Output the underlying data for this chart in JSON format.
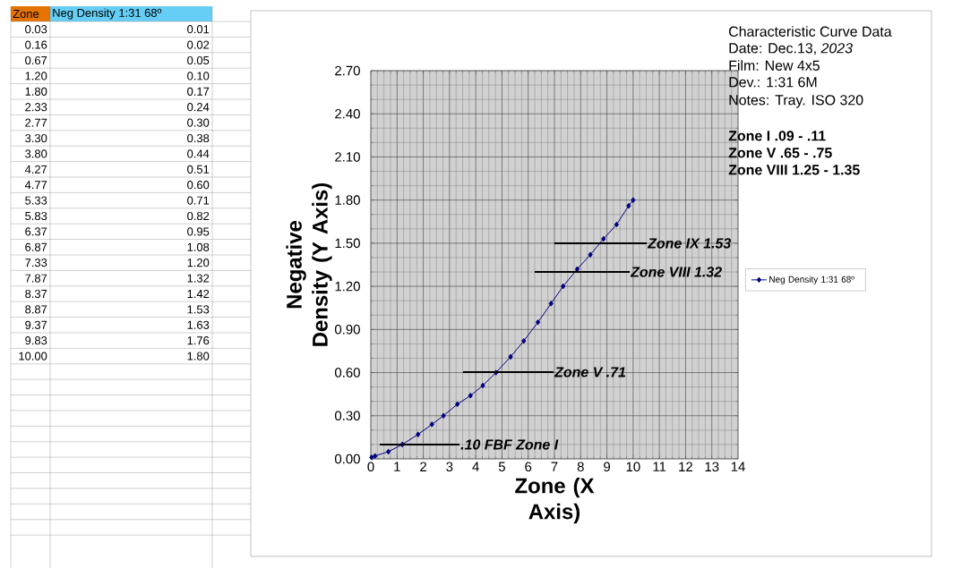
{
  "chart_data": {
    "type": "line",
    "title": "Characteristic Curve Data",
    "xlabel": "Zone (X Axis)",
    "ylabel": "Negative Density (Y Axis)",
    "x": [
      0.03,
      0.16,
      0.67,
      1.2,
      1.8,
      2.33,
      2.77,
      3.3,
      3.8,
      4.27,
      4.77,
      5.33,
      5.83,
      6.37,
      6.87,
      7.33,
      7.87,
      8.37,
      8.87,
      9.37,
      9.83,
      10.0
    ],
    "series": [
      {
        "name": "Neg Density 1:31 68º",
        "color": "#000080",
        "values": [
          0.01,
          0.02,
          0.05,
          0.1,
          0.17,
          0.24,
          0.3,
          0.38,
          0.44,
          0.51,
          0.6,
          0.71,
          0.82,
          0.95,
          1.08,
          1.2,
          1.32,
          1.42,
          1.53,
          1.63,
          1.76,
          1.8
        ]
      }
    ],
    "xlim": [
      0,
      14
    ],
    "ylim": [
      0,
      2.7
    ],
    "xticks": [
      0,
      1,
      2,
      3,
      4,
      5,
      6,
      7,
      8,
      9,
      10,
      11,
      12,
      13,
      14
    ],
    "yticks": [
      {
        "value": 0,
        "label": "0.00"
      },
      {
        "value": 0.3,
        "label": "0.30"
      },
      {
        "value": 0.6,
        "label": "0.60"
      },
      {
        "value": 0.9,
        "label": "0.90"
      },
      {
        "value": 1.2,
        "label": "1.20"
      },
      {
        "value": 1.5,
        "label": "1.50"
      },
      {
        "value": 1.8,
        "label": "1.80"
      },
      {
        "value": 2.1,
        "label": "2.10"
      },
      {
        "value": 2.4,
        "label": "2.40"
      },
      {
        "value": 2.7,
        "label": "2.70"
      }
    ],
    "value_labels": [
      "0.01",
      "0.02",
      "0.05",
      "0.10",
      "0.17",
      "0.24",
      "0.30",
      "0.38",
      "0.44",
      "0.51",
      "0.60",
      "0.71",
      "0.82",
      "0.95",
      "1.08",
      "1.20",
      "1.32",
      "1.42",
      "1.53",
      "1.63",
      "1.76",
      "1.80"
    ],
    "grid": true,
    "legend": "right",
    "marker": "diamond",
    "line_style": "solid",
    "annotations": [
      "Date:  Dec.13, *2023*",
      "Film:  New 4x5",
      "Dev.:  1:31 6M",
      "Notes:  Tray. ISO 320",
      "Zone I .09 - .11",
      "Zone V .65 - .75",
      "Zone VIII 1.25 - 1.35",
      "Zone",
      ".10  FBF Zone I",
      "Zone V .71",
      "Zone VIII 1.32",
      "Zone IX 1.53",
      "0.03",
      "0.16",
      "0.67",
      "1.20",
      "1.80",
      "2.33",
      "2.77",
      "3.30",
      "3.80",
      "4.27",
      "4.77",
      "5.33",
      "5.83",
      "6.37",
      "6.87",
      "7.33",
      "7.87",
      "8.37",
      "8.87",
      "9.37",
      "9.83",
      "10.00"
    ]
  }
}
